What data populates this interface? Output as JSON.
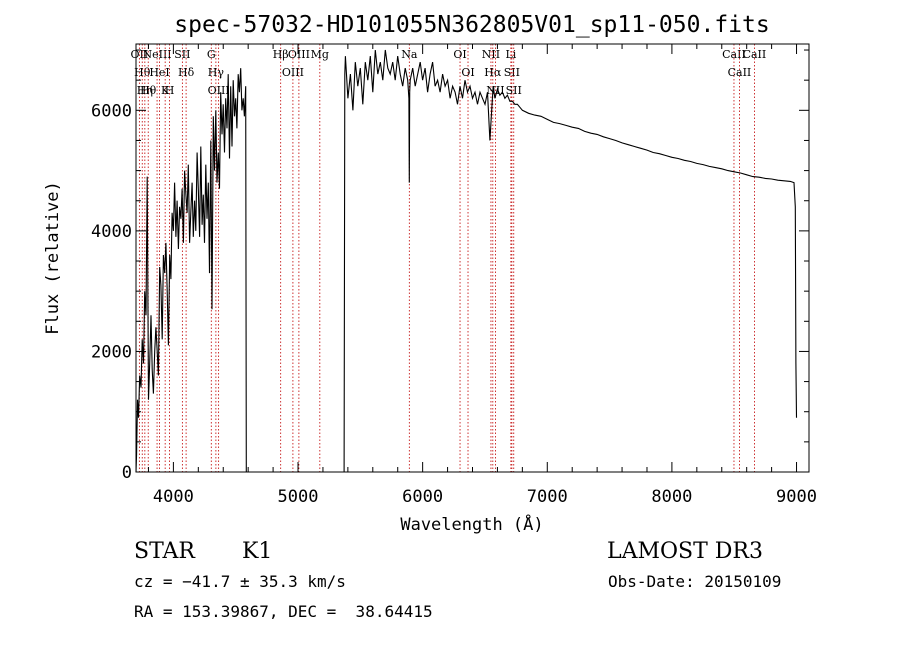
{
  "title": "spec-57032-HD101055N362805V01_sp11-050.fits",
  "info": {
    "class": "STAR",
    "subclass": "K1",
    "survey": "LAMOST DR3",
    "cz": "cz = −41.7 ± 35.3 km/s",
    "obs_date": "Obs-Date: 20150109",
    "radec": "RA = 153.39867, DEC =  38.64415"
  },
  "chart_data": {
    "type": "line",
    "title": "spec-57032-HD101055N362805V01_sp11-050.fits",
    "xlabel": "Wavelength (Å)",
    "ylabel": "Flux (relative)",
    "xlim": [
      3700,
      9100
    ],
    "ylim": [
      0,
      7100
    ],
    "xticks": [
      4000,
      5000,
      6000,
      7000,
      8000,
      9000
    ],
    "yticks": [
      0,
      2000,
      4000,
      6000
    ],
    "grid": false,
    "line_color": "#000000",
    "marker_color": "#c00000",
    "series": [
      {
        "x": [
          3700,
          3705,
          3712,
          3720,
          3730,
          3740,
          3750,
          3760,
          3770,
          3780,
          3790,
          3800,
          3810,
          3820,
          3830,
          3840,
          3850,
          3860,
          3870,
          3880,
          3890,
          3900,
          3910,
          3920,
          3930,
          3940,
          3950,
          3960,
          3970,
          3980,
          3990,
          4000,
          4010,
          4020,
          4030,
          4040,
          4050,
          4060,
          4070,
          4080,
          4090,
          4100,
          4110,
          4120,
          4130,
          4140,
          4150,
          4160,
          4170,
          4180,
          4190,
          4200,
          4210,
          4220,
          4230,
          4240,
          4250,
          4260,
          4270,
          4280,
          4290,
          4300,
          4310,
          4320,
          4330,
          4340,
          4350,
          4360,
          4370,
          4380,
          4390,
          4400,
          4410,
          4420,
          4430,
          4440,
          4450,
          4460,
          4470,
          4480,
          4490,
          4500,
          4510,
          4520,
          4530,
          4540,
          4550,
          4560,
          4570,
          4580,
          4585,
          4590,
          5370,
          5375,
          5380,
          5400,
          5420,
          5440,
          5460,
          5480,
          5500,
          5520,
          5540,
          5560,
          5580,
          5600,
          5620,
          5640,
          5660,
          5680,
          5700,
          5720,
          5740,
          5760,
          5780,
          5800,
          5820,
          5840,
          5860,
          5880,
          5890,
          5893,
          5896,
          5900,
          5920,
          5940,
          5960,
          5980,
          6000,
          6020,
          6040,
          6060,
          6080,
          6100,
          6120,
          6140,
          6160,
          6180,
          6200,
          6220,
          6240,
          6260,
          6280,
          6300,
          6320,
          6340,
          6360,
          6380,
          6400,
          6420,
          6440,
          6460,
          6480,
          6500,
          6520,
          6540,
          6560,
          6563,
          6566,
          6580,
          6600,
          6620,
          6640,
          6660,
          6680,
          6700,
          6720,
          6740,
          6760,
          6780,
          6800,
          6850,
          6900,
          6950,
          7000,
          7050,
          7100,
          7150,
          7200,
          7250,
          7300,
          7350,
          7400,
          7450,
          7500,
          7550,
          7600,
          7650,
          7700,
          7750,
          7800,
          7850,
          7900,
          7950,
          8000,
          8050,
          8100,
          8150,
          8200,
          8250,
          8300,
          8350,
          8400,
          8450,
          8500,
          8550,
          8600,
          8650,
          8700,
          8750,
          8800,
          8850,
          8900,
          8950,
          8980,
          8990,
          8995,
          9000
        ],
        "y": [
          0,
          300,
          1200,
          900,
          1600,
          1400,
          2200,
          1800,
          3000,
          2600,
          4900,
          1200,
          1800,
          2600,
          1700,
          1300,
          2000,
          2400,
          2000,
          1600,
          3400,
          3100,
          2200,
          3600,
          3300,
          3800,
          3000,
          2100,
          3600,
          3200,
          4300,
          4000,
          4800,
          3900,
          4500,
          3700,
          4400,
          4200,
          4700,
          3800,
          5000,
          4600,
          4300,
          5100,
          3800,
          4300,
          4800,
          3900,
          4500,
          4000,
          5300,
          4700,
          3900,
          5400,
          4100,
          4600,
          3800,
          5100,
          4200,
          4800,
          3300,
          5500,
          2700,
          5900,
          5000,
          6000,
          4800,
          5300,
          4700,
          6300,
          5600,
          6100,
          5300,
          6200,
          5700,
          6600,
          5200,
          6400,
          5400,
          6500,
          5900,
          6200,
          5700,
          6600,
          6300,
          6700,
          6000,
          6200,
          5900,
          6400,
          0,
          0,
          0,
          6600,
          6900,
          6200,
          6600,
          6000,
          6800,
          6400,
          6700,
          6100,
          6800,
          6500,
          6900,
          6300,
          7000,
          6600,
          6800,
          6500,
          7000,
          6700,
          6600,
          6800,
          6500,
          6900,
          6600,
          6400,
          6700,
          6500,
          6200,
          4800,
          6300,
          6500,
          6700,
          6400,
          6600,
          6800,
          6500,
          6700,
          6300,
          6600,
          6800,
          6400,
          6500,
          6300,
          6600,
          6400,
          6500,
          6200,
          6400,
          6300,
          6100,
          6400,
          6200,
          6500,
          6300,
          6400,
          6200,
          6300,
          6100,
          6300,
          6200,
          6100,
          6300,
          5500,
          6200,
          6300,
          6400,
          6200,
          6350,
          6250,
          6300,
          6200,
          6250,
          6150,
          6150,
          6100,
          6100,
          6050,
          6000,
          5950,
          5920,
          5900,
          5850,
          5800,
          5780,
          5750,
          5720,
          5700,
          5650,
          5620,
          5600,
          5560,
          5530,
          5500,
          5460,
          5430,
          5400,
          5370,
          5340,
          5300,
          5280,
          5250,
          5220,
          5200,
          5170,
          5150,
          5120,
          5100,
          5070,
          5050,
          5030,
          5000,
          4980,
          4960,
          4930,
          4900,
          4890,
          4870,
          4860,
          4840,
          4830,
          4820,
          4800,
          4400,
          1800,
          900
        ]
      }
    ],
    "line_markers": [
      {
        "wl": 3727,
        "label": "OII"
      },
      {
        "wl": 3750,
        "label": "Hθ"
      },
      {
        "wl": 3771,
        "label": "Hη"
      },
      {
        "wl": 3798,
        "label": "Hθ"
      },
      {
        "wl": 3869,
        "label": "NeIII"
      },
      {
        "wl": 3889,
        "label": "HeI"
      },
      {
        "wl": 3934,
        "label": "K"
      },
      {
        "wl": 3969,
        "label": "H"
      },
      {
        "wl": 4072,
        "label": "SII"
      },
      {
        "wl": 4102,
        "label": "Hδ"
      },
      {
        "wl": 4304,
        "label": "G"
      },
      {
        "wl": 4341,
        "label": "Hγ"
      },
      {
        "wl": 4363,
        "label": "OIII"
      },
      {
        "wl": 4861,
        "label": "Hβ"
      },
      {
        "wl": 4959,
        "label": "OIII"
      },
      {
        "wl": 5007,
        "label": "OIII"
      },
      {
        "wl": 5175,
        "label": "Mg"
      },
      {
        "wl": 5893,
        "label": "Na"
      },
      {
        "wl": 6300,
        "label": "OI"
      },
      {
        "wl": 6364,
        "label": "OI"
      },
      {
        "wl": 6548,
        "label": "NII"
      },
      {
        "wl": 6563,
        "label": "Hα"
      },
      {
        "wl": 6584,
        "label": "NII"
      },
      {
        "wl": 6708,
        "label": "Li"
      },
      {
        "wl": 6716,
        "label": "SII"
      },
      {
        "wl": 6731,
        "label": "SII"
      },
      {
        "wl": 8498,
        "label": "CaII"
      },
      {
        "wl": 8542,
        "label": "CaII"
      },
      {
        "wl": 8662,
        "label": "CaII"
      }
    ]
  }
}
